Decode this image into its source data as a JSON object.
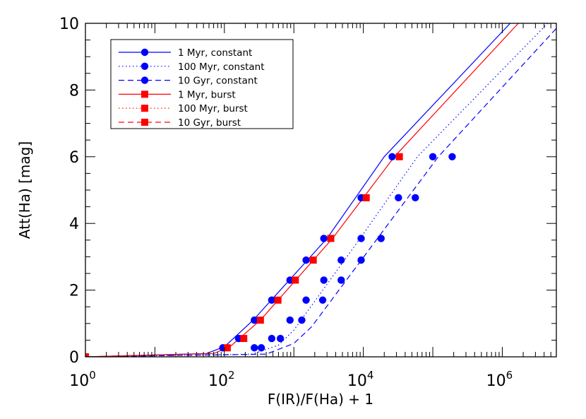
{
  "chart_data": {
    "type": "line",
    "xlabel": "F(IR)/F(Ha) + 1",
    "ylabel": "Att(Ha) [mag]",
    "x_scale": "log",
    "xlim": [
      1,
      6000000
    ],
    "ylim": [
      0,
      10
    ],
    "grid": false,
    "legend_position": "top-left",
    "x_ticks": [
      {
        "value": 1,
        "base": "10",
        "exp": "0"
      },
      {
        "value": 100,
        "base": "10",
        "exp": "2"
      },
      {
        "value": 10000,
        "base": "10",
        "exp": "4"
      },
      {
        "value": 1000000,
        "base": "10",
        "exp": "6"
      }
    ],
    "y_ticks": [
      "0",
      "2",
      "4",
      "6",
      "8",
      "10"
    ],
    "series": [
      {
        "name": "1 Myr, constant",
        "color": "#0000ff",
        "linestyle": "solid",
        "marker": "circle",
        "curve": [
          [
            1,
            0
          ],
          [
            55,
            0.1
          ],
          [
            100,
            0.3
          ],
          [
            260,
            1.1
          ],
          [
            3000,
            3.55
          ],
          [
            20000,
            6.0
          ],
          [
            1300000,
            10
          ]
        ],
        "points": [
          [
            95,
            0.27
          ],
          [
            160,
            0.55
          ],
          [
            270,
            1.1
          ],
          [
            480,
            1.7
          ],
          [
            880,
            2.3
          ],
          [
            1500,
            2.9
          ],
          [
            2700,
            3.55
          ],
          [
            9300,
            4.77
          ],
          [
            26000,
            6.0
          ]
        ]
      },
      {
        "name": "100 Myr, constant",
        "color": "#0000ff",
        "linestyle": "dotted",
        "marker": "circle",
        "curve": [
          [
            1,
            0
          ],
          [
            250,
            0.08
          ],
          [
            600,
            0.35
          ],
          [
            1000,
            0.8
          ],
          [
            9000,
            3.55
          ],
          [
            60000,
            6.0
          ],
          [
            4500000,
            10
          ]
        ],
        "points": [
          [
            270,
            0.27
          ],
          [
            480,
            0.55
          ],
          [
            880,
            1.1
          ],
          [
            1500,
            1.7
          ],
          [
            2700,
            2.3
          ],
          [
            4800,
            2.9
          ],
          [
            9300,
            3.55
          ],
          [
            32000,
            4.77
          ],
          [
            100000,
            6.0
          ]
        ]
      },
      {
        "name": "10 Gyr, constant",
        "color": "#0000ff",
        "linestyle": "dashed",
        "marker": "circle",
        "curve": [
          [
            1,
            0
          ],
          [
            400,
            0.08
          ],
          [
            1000,
            0.4
          ],
          [
            1800,
            0.9
          ],
          [
            16000,
            3.55
          ],
          [
            120000,
            6.0
          ],
          [
            7000000,
            10
          ]
        ],
        "points": [
          [
            340,
            0.27
          ],
          [
            640,
            0.55
          ],
          [
            1300,
            1.1
          ],
          [
            2600,
            1.7
          ],
          [
            4800,
            2.3
          ],
          [
            9300,
            2.9
          ],
          [
            18000,
            3.55
          ],
          [
            56000,
            4.77
          ],
          [
            190000,
            6.0
          ]
        ]
      },
      {
        "name": "1 Myr, burst",
        "color": "#ff0000",
        "linestyle": "solid",
        "marker": "square",
        "curve": [
          [
            1,
            0
          ],
          [
            70,
            0.1
          ],
          [
            120,
            0.3
          ],
          [
            330,
            1.1
          ],
          [
            3600,
            3.55
          ],
          [
            28000,
            6.0
          ],
          [
            1700000,
            10
          ]
        ],
        "points": [
          [
            1,
            0
          ],
          [
            110,
            0.27
          ],
          [
            190,
            0.55
          ],
          [
            330,
            1.1
          ],
          [
            590,
            1.7
          ],
          [
            1050,
            2.3
          ],
          [
            1900,
            2.9
          ],
          [
            3400,
            3.55
          ],
          [
            11000,
            4.77
          ],
          [
            33000,
            6.0
          ]
        ]
      },
      {
        "name": "100 Myr, burst",
        "color": "#ff0000",
        "linestyle": "dotted",
        "marker": "square",
        "curve": [],
        "points": []
      },
      {
        "name": "10 Gyr, burst",
        "color": "#ff0000",
        "linestyle": "dashed",
        "marker": "square",
        "curve": [],
        "points": []
      }
    ]
  }
}
